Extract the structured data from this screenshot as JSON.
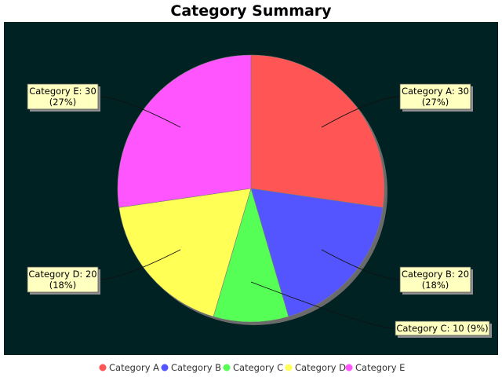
{
  "chart_data": {
    "type": "pie",
    "title": "Category Summary",
    "categories": [
      "Category A",
      "Category B",
      "Category C",
      "Category D",
      "Category E"
    ],
    "values": [
      30,
      20,
      10,
      20,
      30
    ],
    "labels": [
      [
        "Category A: 30",
        "(27%)"
      ],
      [
        "Category B: 20",
        "(18%)"
      ],
      [
        "Category C: 10 (9%)"
      ],
      [
        "Category D: 20",
        "(18%)"
      ],
      [
        "Category E: 30",
        "(27%)"
      ]
    ],
    "colors": [
      "#ff5555",
      "#5555ff",
      "#55ff55",
      "#ffff55",
      "#ff55ff"
    ],
    "background": "#002222",
    "legend_position": "bottom"
  }
}
